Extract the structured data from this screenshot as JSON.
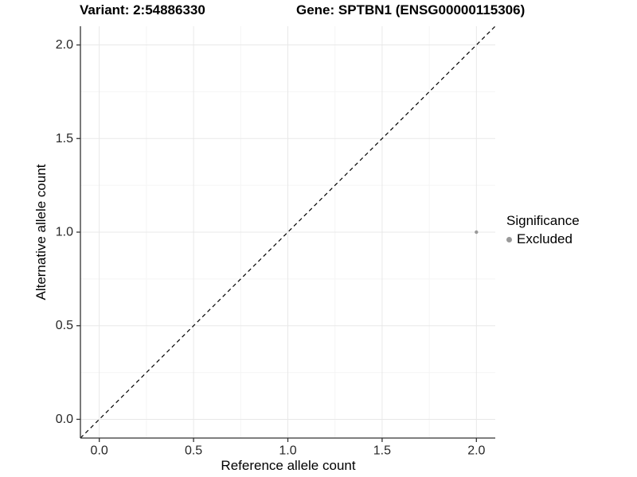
{
  "titles": {
    "variant": "Variant: 2:54886330",
    "gene": "Gene: SPTBN1 (ENSG00000115306)"
  },
  "chart_data": {
    "type": "scatter",
    "title_left": "Variant: 2:54886330",
    "title_right": "Gene: SPTBN1 (ENSG00000115306)",
    "xlabel": "Reference allele count",
    "ylabel": "Alternative allele count",
    "xlim": [
      -0.1,
      2.1
    ],
    "ylim": [
      -0.1,
      2.1
    ],
    "xticks": [
      0.0,
      0.5,
      1.0,
      1.5,
      2.0
    ],
    "yticks": [
      0.0,
      0.5,
      1.0,
      1.5,
      2.0
    ],
    "x_minor_ticks": [
      0.25,
      0.75,
      1.25,
      1.75
    ],
    "y_minor_ticks": [
      0.25,
      0.75,
      1.25,
      1.75
    ],
    "grid": "on",
    "grid_major_color": "#e8e8e8",
    "grid_minor_color": "#f5f5f5",
    "axis_line_color": "#333333",
    "identity_line": {
      "style": "dashed",
      "color": "#000000",
      "from": [
        -0.1,
        -0.1
      ],
      "to": [
        2.1,
        2.1
      ]
    },
    "series": [
      {
        "name": "Excluded",
        "color": "#999999",
        "points": [
          {
            "x": 2.0,
            "y": 1.0
          }
        ]
      }
    ],
    "legend": {
      "title": "Significance",
      "position": "right",
      "items": [
        {
          "label": "Excluded",
          "color": "#999999"
        }
      ]
    }
  }
}
